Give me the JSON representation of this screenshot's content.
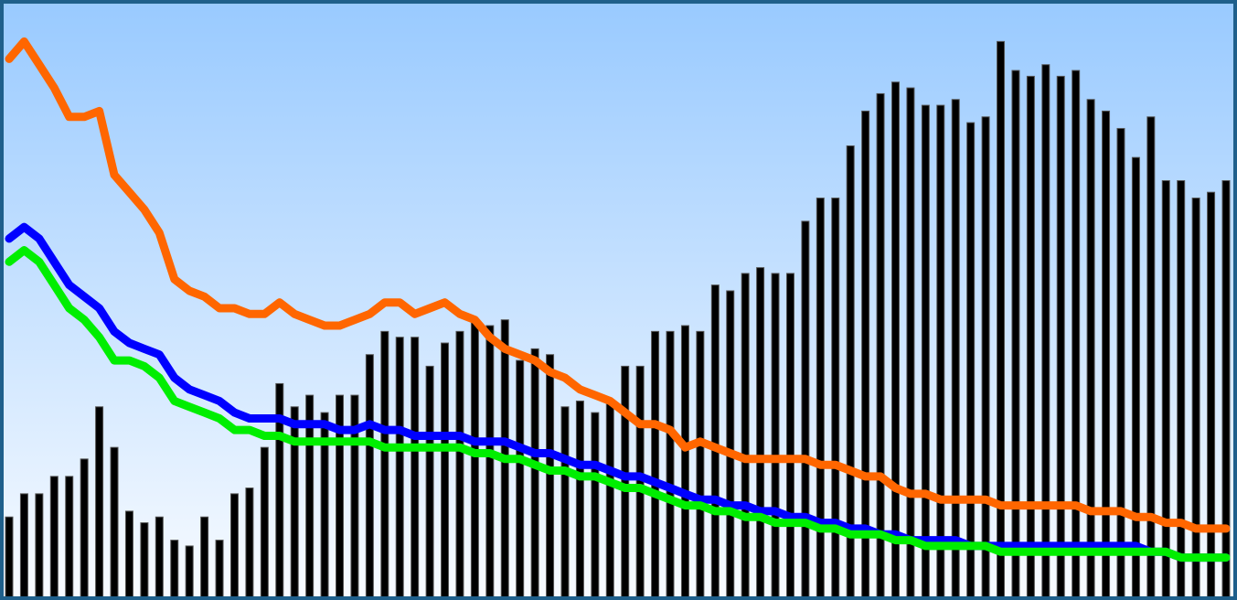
{
  "colors": {
    "frame": "#1f5f8b",
    "background_top": "#99caff",
    "background_bottom": "#f8fbff",
    "bars": "#000000",
    "bar_highlight": "#555555"
  },
  "chart_data": {
    "type": "bar",
    "title": "",
    "xlabel": "",
    "ylabel": "",
    "grid": false,
    "ylim": [
      0,
      100
    ],
    "bars": {
      "name": "",
      "color": "#000000",
      "values": [
        14,
        18,
        18,
        21,
        21,
        24,
        33,
        26,
        15,
        13,
        14,
        10,
        9,
        14,
        10,
        18,
        19,
        26,
        37,
        33,
        35,
        32,
        35,
        35,
        42,
        46,
        45,
        45,
        40,
        44,
        46,
        48,
        47,
        48,
        41,
        43,
        42,
        33,
        34,
        32,
        34,
        40,
        40,
        46,
        46,
        47,
        46,
        54,
        53,
        56,
        57,
        56,
        56,
        65,
        69,
        69,
        78,
        84,
        87,
        89,
        88,
        85,
        85,
        86,
        82,
        83,
        96,
        91,
        90,
        92,
        90,
        91,
        86,
        84,
        81,
        76,
        83,
        72,
        72,
        69,
        70,
        72
      ]
    },
    "lines": [
      {
        "name": "",
        "color": "#ff6600",
        "values": [
          93,
          96,
          92,
          88,
          83,
          83,
          84,
          73,
          70,
          67,
          63,
          55,
          53,
          52,
          50,
          50,
          49,
          49,
          51,
          49,
          48,
          47,
          47,
          48,
          49,
          51,
          51,
          49,
          50,
          51,
          49,
          48,
          45,
          43,
          42,
          41,
          39,
          38,
          36,
          35,
          34,
          32,
          30,
          30,
          29,
          26,
          27,
          26,
          25,
          24,
          24,
          24,
          24,
          24,
          23,
          23,
          22,
          21,
          21,
          19,
          18,
          18,
          17,
          17,
          17,
          17,
          16,
          16,
          16,
          16,
          16,
          16,
          15,
          15,
          15,
          14,
          14,
          13,
          13,
          12,
          12,
          12
        ]
      },
      {
        "name": "",
        "color": "#0000ff",
        "values": [
          62,
          64,
          62,
          58,
          54,
          52,
          50,
          46,
          44,
          43,
          42,
          38,
          36,
          35,
          34,
          32,
          31,
          31,
          31,
          30,
          30,
          30,
          29,
          29,
          30,
          29,
          29,
          28,
          28,
          28,
          28,
          27,
          27,
          27,
          26,
          25,
          25,
          24,
          23,
          23,
          22,
          21,
          21,
          20,
          19,
          18,
          17,
          17,
          16,
          16,
          15,
          15,
          14,
          14,
          13,
          13,
          12,
          12,
          11,
          11,
          10,
          10,
          10,
          10,
          9,
          9,
          9,
          9,
          9,
          9,
          9,
          9,
          9,
          9,
          9,
          9,
          8,
          8,
          7,
          7,
          7,
          7
        ]
      },
      {
        "name": "",
        "color": "#00ee00",
        "values": [
          58,
          60,
          58,
          54,
          50,
          48,
          45,
          41,
          41,
          40,
          38,
          34,
          33,
          32,
          31,
          29,
          29,
          28,
          28,
          27,
          27,
          27,
          27,
          27,
          27,
          26,
          26,
          26,
          26,
          26,
          26,
          25,
          25,
          24,
          24,
          23,
          22,
          22,
          21,
          21,
          20,
          19,
          19,
          18,
          17,
          16,
          16,
          15,
          15,
          14,
          14,
          13,
          13,
          13,
          12,
          12,
          11,
          11,
          11,
          10,
          10,
          9,
          9,
          9,
          9,
          9,
          8,
          8,
          8,
          8,
          8,
          8,
          8,
          8,
          8,
          8,
          8,
          8,
          7,
          7,
          7,
          7
        ]
      }
    ]
  }
}
